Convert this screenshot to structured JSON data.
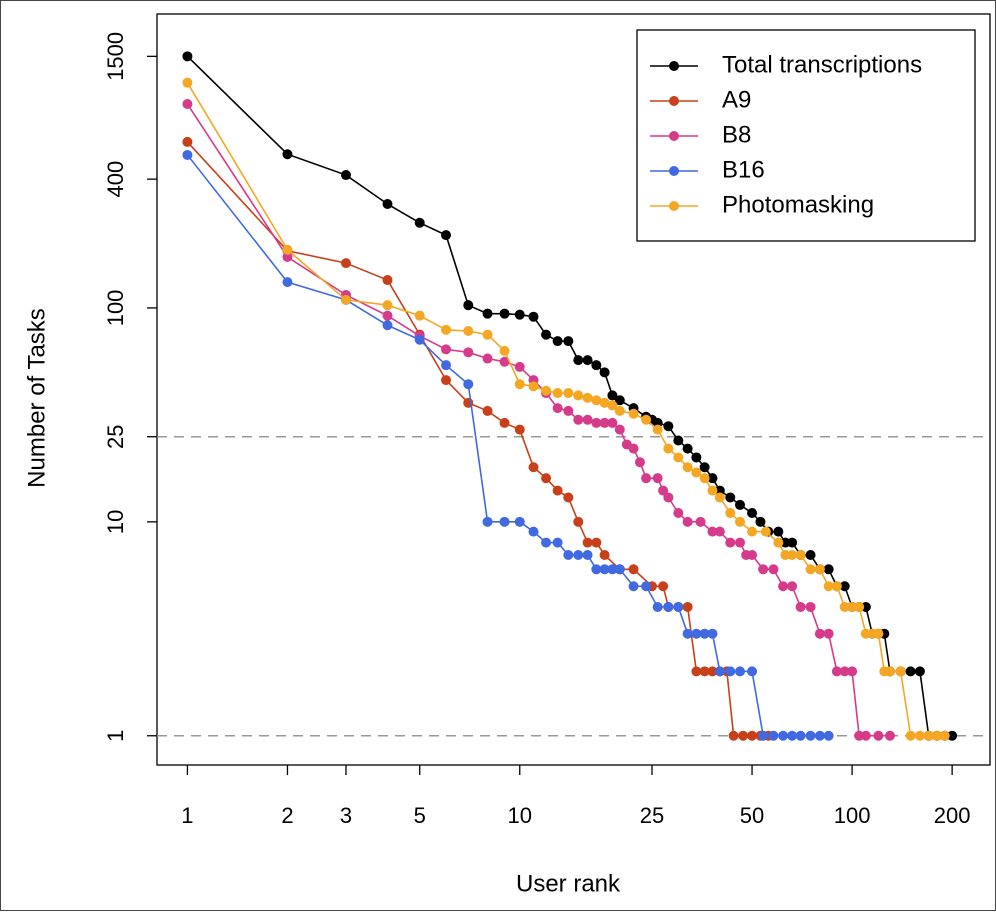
{
  "chart_data": {
    "type": "line",
    "x_label": "User rank",
    "y_label": "Number of Tasks",
    "log_x": true,
    "log_y": true,
    "xlim": [
      0.81,
      260
    ],
    "ylim": [
      0.73,
      2366
    ],
    "xticks": [
      1,
      2,
      3,
      5,
      10,
      25,
      50,
      100,
      200
    ],
    "yticks": [
      1,
      10,
      25,
      100,
      400,
      1500
    ],
    "hlines": [
      1,
      25
    ],
    "legend": "top-right",
    "series": [
      {
        "name": "Total transcriptions",
        "color": "#000000",
        "x": [
          1,
          2,
          3,
          4,
          5,
          6,
          7,
          8,
          9,
          10,
          11,
          12,
          13,
          14,
          15,
          16,
          17,
          18,
          19,
          20,
          22,
          24,
          25,
          26,
          28,
          30,
          32,
          34,
          36,
          38,
          40,
          43,
          46,
          50,
          53,
          56,
          60,
          63,
          66,
          70,
          75,
          80,
          85,
          90,
          95,
          100,
          105,
          110,
          115,
          120,
          125,
          130,
          140,
          150,
          160,
          170,
          180,
          190,
          200
        ],
        "values": [
          1500,
          523,
          418,
          306,
          250,
          219,
          103,
          94,
          94,
          93,
          91,
          75,
          70,
          70,
          57,
          57,
          54,
          50,
          39,
          37,
          34,
          31,
          30,
          29,
          28,
          24,
          22,
          20,
          18,
          16,
          14,
          13,
          12,
          11,
          10,
          9,
          9,
          8,
          8,
          7,
          7,
          6,
          6,
          5,
          5,
          4,
          4,
          4,
          3,
          3,
          3,
          2,
          2,
          2,
          2,
          1,
          1,
          1,
          1
        ]
      },
      {
        "name": "A9",
        "color": "#c8401a",
        "x": [
          1,
          2,
          3,
          4,
          5,
          6,
          7,
          8,
          9,
          10,
          11,
          12,
          13,
          14,
          15,
          16,
          17,
          18,
          20,
          22,
          25,
          27,
          28,
          30,
          32,
          34,
          36,
          38,
          40,
          42,
          44,
          47,
          50,
          53,
          56
        ],
        "values": [
          597,
          185,
          162,
          135,
          75,
          46,
          36,
          33,
          29,
          27,
          18,
          16,
          14,
          13,
          10,
          8,
          8,
          7,
          6,
          6,
          5,
          5,
          4,
          4,
          4,
          2,
          2,
          2,
          2,
          2,
          1,
          1,
          1,
          1,
          1
        ]
      },
      {
        "name": "B8",
        "color": "#d63a8a",
        "x": [
          1,
          2,
          3,
          4,
          5,
          6,
          7,
          8,
          9,
          10,
          11,
          12,
          13,
          14,
          15,
          16,
          17,
          18,
          19,
          20,
          21,
          22,
          23,
          24,
          26,
          27,
          28,
          30,
          32,
          35,
          38,
          40,
          43,
          46,
          48,
          50,
          54,
          58,
          62,
          66,
          70,
          75,
          80,
          85,
          90,
          95,
          100,
          105,
          110,
          120,
          130
        ],
        "values": [
          898,
          173,
          115,
          92,
          74,
          64,
          62,
          58,
          56,
          53,
          46,
          40,
          34,
          33,
          30,
          30,
          29,
          29,
          29,
          27,
          23,
          22,
          19,
          16,
          16,
          14,
          13,
          11,
          10,
          10,
          9,
          9,
          8,
          8,
          7,
          7,
          6,
          6,
          5,
          5,
          4,
          4,
          3,
          3,
          2,
          2,
          2,
          1,
          1,
          1,
          1
        ]
      },
      {
        "name": "B16",
        "color": "#4169e1",
        "x": [
          1,
          2,
          3,
          4,
          5,
          6,
          7,
          8,
          9,
          10,
          11,
          12,
          13,
          14,
          15,
          16,
          17,
          18,
          19,
          20,
          22,
          24,
          26,
          28,
          30,
          32,
          34,
          36,
          38,
          40,
          43,
          46,
          50,
          54,
          58,
          62,
          66,
          70,
          75,
          80,
          85
        ],
        "values": [
          519,
          132,
          109,
          83,
          71,
          54,
          44,
          10,
          10,
          10,
          9,
          8,
          8,
          7,
          7,
          7,
          6,
          6,
          6,
          6,
          5,
          5,
          4,
          4,
          4,
          3,
          3,
          3,
          3,
          2,
          2,
          2,
          2,
          1,
          1,
          1,
          1,
          1,
          1,
          1,
          1
        ]
      },
      {
        "name": "Photomasking",
        "color": "#f5a623",
        "x": [
          1,
          2,
          3,
          4,
          5,
          6,
          7,
          8,
          9,
          10,
          11,
          12,
          13,
          14,
          15,
          16,
          17,
          18,
          19,
          20,
          22,
          24,
          26,
          28,
          30,
          32,
          34,
          36,
          38,
          40,
          43,
          46,
          50,
          55,
          60,
          63,
          66,
          70,
          75,
          80,
          85,
          90,
          95,
          100,
          105,
          110,
          115,
          120,
          125,
          130,
          140,
          150,
          160,
          170,
          180,
          190
        ],
        "values": [
          1130,
          187,
          109,
          103,
          92,
          79,
          78,
          75,
          63,
          44,
          43,
          41,
          40,
          40,
          39,
          38,
          37,
          36,
          35,
          33,
          32,
          30,
          27,
          22,
          20,
          18,
          17,
          16,
          14,
          13,
          11,
          10,
          9,
          9,
          8,
          7,
          7,
          7,
          6,
          6,
          5,
          5,
          4,
          4,
          4,
          3,
          3,
          3,
          2,
          2,
          2,
          1,
          1,
          1,
          1,
          1
        ]
      }
    ]
  }
}
